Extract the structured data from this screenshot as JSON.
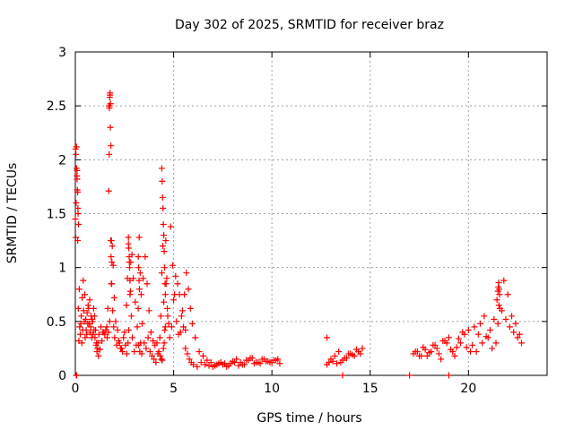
{
  "chart_data": {
    "type": "scatter",
    "title": "Day 302 of 2025, SRMTID for receiver braz",
    "xlabel": "GPS time / hours",
    "ylabel": "SRMTID / TECUs",
    "xlim": [
      0,
      24
    ],
    "ylim": [
      0,
      3
    ],
    "x_ticks": [
      0,
      5,
      10,
      15,
      20
    ],
    "x_tick_labels": [
      "0",
      "5",
      "10",
      "15",
      "20"
    ],
    "y_ticks": [
      0,
      0.5,
      1,
      1.5,
      2,
      2.5,
      3
    ],
    "y_tick_labels": [
      "0",
      "0.5",
      "1",
      "1.5",
      "2",
      "2.5",
      "3"
    ],
    "grid": true,
    "marker": "plus",
    "color": "#ff0000",
    "series": [
      {
        "name": "SRMTID",
        "x": [
          0.0,
          0.02,
          0.04,
          0.06,
          0.08,
          0.1,
          0.12,
          0.15,
          0.18,
          0.22,
          0.25,
          0.3,
          0.35,
          0.4,
          0.45,
          0.5,
          0.55,
          0.6,
          0.65,
          0.7,
          0.75,
          0.8,
          0.85,
          0.9,
          0.95,
          1.0,
          1.05,
          1.1,
          1.15,
          1.2,
          1.3,
          1.4,
          1.5,
          1.6,
          1.65,
          1.7,
          1.72,
          1.74,
          1.76,
          1.78,
          1.8,
          1.82,
          1.85,
          1.9,
          1.95,
          2.0,
          2.1,
          2.2,
          2.3,
          2.4,
          2.5,
          2.6,
          2.65,
          2.7,
          2.75,
          2.8,
          2.85,
          2.9,
          3.0,
          3.1,
          3.2,
          3.25,
          3.3,
          3.35,
          3.4,
          3.5,
          3.6,
          3.7,
          3.8,
          3.9,
          4.0,
          4.1,
          4.2,
          4.3,
          4.35,
          4.4,
          4.45,
          4.5,
          4.55,
          4.6,
          4.65,
          4.7,
          4.8,
          4.9,
          5.0,
          5.1,
          5.2,
          5.3,
          5.4,
          5.5,
          5.6,
          5.7,
          5.8,
          5.9,
          6.0,
          6.2,
          6.4,
          6.6,
          6.8,
          7.0,
          7.2,
          7.4,
          7.6,
          7.8,
          8.0,
          8.2,
          8.4,
          8.6,
          8.8,
          9.0,
          9.2,
          9.4,
          9.6,
          9.8,
          10.0,
          10.2,
          10.4,
          12.8,
          13.0,
          13.2,
          13.4,
          13.6,
          13.8,
          14.0,
          14.2,
          14.4,
          14.6,
          17.2,
          17.4,
          17.6,
          17.8,
          18.0,
          18.2,
          18.4,
          18.6,
          18.8,
          19.0,
          19.2,
          19.4,
          19.6,
          19.8,
          20.0,
          20.2,
          20.4,
          20.6,
          20.8,
          21.0,
          21.2,
          21.4,
          21.5,
          21.6,
          21.8,
          22.0,
          22.2,
          22.4,
          22.6,
          5.6,
          12.8,
          13.6,
          17.0,
          19.0,
          0.05,
          0.07,
          0.09,
          0.11,
          0.13,
          0.16,
          0.2,
          0.28,
          0.33,
          0.38,
          0.42,
          0.48,
          0.53,
          0.58,
          0.63,
          0.68,
          0.73,
          0.78,
          0.83,
          0.88,
          0.93,
          0.98,
          1.03,
          1.08,
          1.13,
          1.18,
          1.25,
          1.35,
          1.45,
          1.55,
          1.62,
          1.68,
          1.75,
          1.83,
          1.88,
          1.93,
          1.98,
          2.05,
          2.15,
          2.25,
          2.35,
          2.45,
          2.55,
          2.62,
          2.68,
          2.72,
          2.78,
          2.82,
          2.88,
          2.95,
          3.05,
          3.15,
          3.22,
          3.28,
          3.32,
          3.38,
          3.45,
          3.55,
          3.65,
          3.75,
          3.85,
          3.95,
          4.05,
          4.15,
          4.25,
          4.32,
          4.38,
          4.42,
          4.48,
          4.52,
          4.58,
          4.62,
          4.68,
          4.75,
          4.85,
          4.95,
          5.05,
          5.15,
          5.25,
          5.35,
          5.45,
          5.55,
          5.65,
          5.75,
          5.85,
          5.95,
          6.1,
          6.3,
          6.5,
          6.7,
          6.9,
          7.1,
          7.3,
          7.5,
          7.7,
          7.9,
          8.1,
          8.3,
          8.5,
          8.7,
          8.9,
          9.1,
          9.3,
          9.5,
          9.7,
          9.9,
          10.1,
          10.3,
          12.9,
          13.1,
          13.3,
          13.5,
          13.7,
          13.9,
          14.1,
          14.3,
          14.5,
          17.3,
          17.5,
          17.7,
          17.9,
          18.1,
          18.3,
          18.5,
          18.7,
          18.9,
          19.1,
          19.3,
          19.5,
          19.7,
          19.9,
          20.1,
          20.3,
          20.5,
          20.7,
          20.9,
          21.1,
          21.3,
          21.45,
          21.55,
          21.7,
          21.9,
          22.1,
          22.3,
          22.5,
          22.7,
          0.01,
          0.03,
          0.06,
          0.09,
          0.12,
          0.14,
          1.71,
          1.73,
          1.75,
          1.77,
          1.79,
          1.81,
          1.84,
          1.86,
          4.4,
          4.42,
          4.44,
          4.46,
          4.48,
          4.5,
          4.52,
          4.54,
          4.56,
          4.58,
          2.7,
          2.72,
          2.74,
          2.76,
          2.78,
          3.2,
          3.22,
          3.24,
          3.26,
          21.5,
          21.52,
          21.54,
          21.56,
          21.58
        ],
        "y": [
          1.45,
          1.28,
          1.6,
          2.12,
          1.85,
          1.72,
          1.25,
          0.62,
          0.32,
          0.45,
          0.38,
          0.55,
          0.72,
          0.88,
          0.5,
          0.35,
          0.42,
          0.58,
          0.65,
          0.48,
          0.4,
          0.55,
          0.52,
          0.38,
          0.42,
          0.35,
          0.28,
          0.22,
          0.3,
          0.38,
          0.45,
          0.4,
          0.38,
          0.45,
          0.62,
          1.71,
          2.05,
          2.5,
          2.6,
          2.3,
          1.25,
          1.1,
          0.85,
          0.6,
          0.45,
          0.35,
          0.28,
          0.32,
          0.25,
          0.22,
          0.4,
          0.65,
          0.9,
          1.22,
          1.05,
          0.78,
          0.55,
          0.35,
          0.22,
          0.28,
          0.62,
          1.28,
          0.95,
          0.75,
          0.48,
          0.3,
          0.25,
          0.35,
          0.22,
          0.18,
          0.15,
          0.12,
          0.2,
          0.35,
          0.55,
          0.95,
          1.2,
          0.68,
          0.42,
          1.25,
          0.9,
          0.55,
          0.35,
          0.45,
          0.7,
          0.92,
          0.85,
          0.75,
          0.55,
          0.45,
          0.25,
          0.2,
          0.15,
          0.12,
          0.1,
          0.08,
          0.12,
          0.1,
          0.09,
          0.08,
          0.1,
          0.12,
          0.11,
          0.09,
          0.13,
          0.15,
          0.12,
          0.1,
          0.14,
          0.16,
          0.12,
          0.11,
          0.15,
          0.13,
          0.12,
          0.14,
          0.11,
          0.1,
          0.15,
          0.18,
          0.22,
          0.14,
          0.16,
          0.2,
          0.18,
          0.22,
          0.25,
          0.2,
          0.22,
          0.18,
          0.24,
          0.21,
          0.28,
          0.25,
          0.15,
          0.32,
          0.35,
          0.22,
          0.26,
          0.3,
          0.38,
          0.42,
          0.28,
          0.22,
          0.48,
          0.55,
          0.35,
          0.25,
          0.3,
          0.48,
          0.62,
          0.88,
          0.75,
          0.55,
          0.48,
          0.38,
          0.42,
          0.35,
          0.0,
          0.0,
          0.0,
          0.0,
          0.0,
          1.9,
          1.7,
          1.55,
          1.4,
          0.8,
          0.48,
          0.3,
          0.42,
          0.6,
          0.75,
          0.52,
          0.38,
          0.48,
          0.62,
          0.7,
          0.45,
          0.35,
          0.5,
          0.62,
          0.55,
          0.42,
          0.3,
          0.25,
          0.18,
          0.24,
          0.32,
          0.4,
          0.42,
          0.35,
          0.4,
          0.5,
          0.85,
          1.2,
          1.02,
          0.72,
          0.5,
          0.42,
          0.3,
          0.25,
          0.35,
          0.28,
          0.2,
          0.3,
          0.42,
          0.75,
          1.05,
          1.12,
          0.9,
          0.68,
          0.45,
          0.28,
          0.22,
          0.3,
          0.2,
          0.9,
          1.1,
          0.85,
          0.6,
          0.4,
          0.32,
          0.28,
          0.3,
          0.22,
          0.18,
          0.15,
          0.14,
          0.25,
          0.3,
          0.45,
          0.85,
          0.62,
          0.48,
          1.38,
          1.02,
          0.75,
          0.5,
          0.38,
          0.4,
          0.6,
          0.75,
          0.95,
          0.8,
          0.62,
          0.48,
          0.35,
          0.22,
          0.18,
          0.14,
          0.12,
          0.09,
          0.11,
          0.1,
          0.08,
          0.11,
          0.12,
          0.09,
          0.1,
          0.14,
          0.16,
          0.11,
          0.12,
          0.15,
          0.13,
          0.12,
          0.14,
          0.15,
          0.12,
          0.13,
          0.11,
          0.12,
          0.16,
          0.2,
          0.19,
          0.24,
          0.2,
          0.22,
          0.18,
          0.26,
          0.18,
          0.22,
          0.28,
          0.2,
          0.32,
          0.3,
          0.24,
          0.18,
          0.34,
          0.4,
          0.26,
          0.22,
          0.45,
          0.38,
          0.3,
          0.36,
          0.42,
          0.52,
          0.7,
          0.65,
          0.6,
          0.52,
          0.45,
          0.4,
          0.35,
          0.3,
          2.1,
          2.05,
          1.92,
          1.82,
          1.7,
          1.5,
          2.5,
          2.48,
          2.58,
          2.62,
          2.52,
          2.13,
          1.25,
          1.05,
          1.92,
          1.8,
          1.65,
          1.55,
          1.4,
          1.3,
          1.15,
          1.0,
          0.85,
          0.75,
          1.28,
          1.18,
          1.1,
          1.0,
          0.88,
          1.1,
          1.0,
          0.88,
          0.8,
          0.78,
          0.82,
          0.86,
          0.8,
          0.75
        ]
      }
    ]
  }
}
